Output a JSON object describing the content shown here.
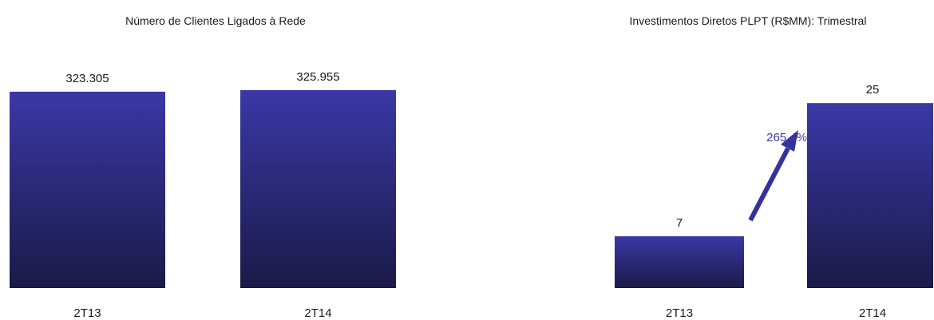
{
  "colors": {
    "bar_top": "#3a38a6",
    "bar_bottom": "#1b1a48",
    "arrow": "#34329e",
    "growth_text": "#3b3aa3",
    "text": "#1a1a1a"
  },
  "chart_data": [
    {
      "type": "bar",
      "title": "Número de Clientes Ligados à Rede",
      "categories": [
        "2T13",
        "2T14"
      ],
      "values": [
        323305,
        325955
      ],
      "value_labels": [
        "323.305",
        "325.955"
      ],
      "ylim": [
        0,
        335000
      ],
      "grid": false
    },
    {
      "type": "bar",
      "title": "Investimentos Diretos PLPT (R$MM): Trimestral",
      "categories": [
        "2T13",
        "2T14"
      ],
      "values": [
        7,
        25
      ],
      "value_labels": [
        "7",
        "25"
      ],
      "ylim": [
        0,
        27.5
      ],
      "grid": false,
      "annotation": {
        "text": "265,4%",
        "icon": "arrow-up-right-icon"
      }
    }
  ]
}
